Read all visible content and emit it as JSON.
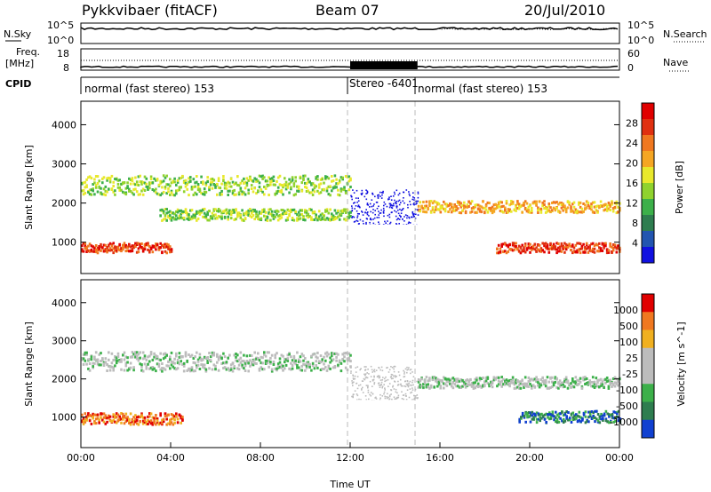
{
  "header": {
    "title": "Pykkvibaer (fitACF)",
    "beam": "Beam 07",
    "date": "20/Jul/2010"
  },
  "side_labels": {
    "nsky": "N.Sky",
    "nsearch": "N.Search",
    "freq_line1": "Freq.",
    "freq_line2": "[MHz]",
    "nave": "Nave",
    "cpid": "CPID"
  },
  "noise_panel": {
    "left_ticks": [
      "10^5",
      "10^0"
    ],
    "right_ticks": [
      "10^5",
      "10^0"
    ]
  },
  "freq_panel": {
    "left_ticks": [
      "18",
      "8"
    ],
    "right_ticks": [
      "60",
      "0"
    ]
  },
  "cpid_panel": {
    "segments": [
      {
        "label": "normal (fast stereo) 153",
        "start_hour": 0,
        "end_hour": 12
      },
      {
        "label": "Stereo -6401",
        "start_hour": 12,
        "end_hour": 15
      },
      {
        "label": "normal (fast stereo) 153",
        "start_hour": 15,
        "end_hour": 24
      }
    ]
  },
  "chart_data": [
    {
      "type": "heatmap",
      "name": "power-panel",
      "ylabel": "Slant Range [km]",
      "xlim": [
        0,
        24
      ],
      "ylim": [
        200,
        4600
      ],
      "yticks": [
        "1000",
        "2000",
        "3000",
        "4000"
      ],
      "colorbar": {
        "label": "Power [dB]",
        "ticks": [
          "28",
          "24",
          "20",
          "16",
          "12",
          "8",
          "4"
        ],
        "colors": [
          "#1010e0",
          "#2255b0",
          "#2e7d4f",
          "#3cb04a",
          "#8fd22e",
          "#e8e82c",
          "#f5a623",
          "#f07820",
          "#e03010",
          "#e00000"
        ]
      },
      "data_gap": {
        "start_hour": 12,
        "end_hour": 15,
        "blank_below_km": 1450
      },
      "bands": [
        {
          "start_hour": 0,
          "end_hour": 12,
          "center_km": 2450,
          "width_km": 500,
          "level": 4
        },
        {
          "start_hour": 3.5,
          "end_hour": 12,
          "center_km": 1700,
          "width_km": 300,
          "level": 4
        },
        {
          "start_hour": 0,
          "end_hour": 4,
          "center_km": 850,
          "width_km": 250,
          "level": 8
        },
        {
          "start_hour": 15,
          "end_hour": 24,
          "center_km": 1900,
          "width_km": 300,
          "level": 6
        },
        {
          "start_hour": 18.5,
          "end_hour": 24,
          "center_km": 850,
          "width_km": 250,
          "level": 8
        }
      ]
    },
    {
      "type": "heatmap",
      "name": "velocity-panel",
      "ylabel": "Slant Range [km]",
      "xlabel": "Time UT",
      "xlim": [
        0,
        24
      ],
      "ylim": [
        200,
        4600
      ],
      "yticks": [
        "1000",
        "2000",
        "3000",
        "4000"
      ],
      "xticks": [
        "00:00",
        "04:00",
        "08:00",
        "12:00",
        "16:00",
        "20:00",
        "00:00"
      ],
      "colorbar": {
        "label": "Velocity [m s^-1]",
        "ticks": [
          "1000",
          "500",
          "100",
          "25",
          "-25",
          "-100",
          "-500",
          "-1000"
        ],
        "colors": [
          "#1040d0",
          "#2e7d4f",
          "#3cb04a",
          "#bcbcbc",
          "#bcbcbc",
          "#f0b020",
          "#f07820",
          "#e00000"
        ]
      },
      "data_gap": {
        "start_hour": 12,
        "end_hour": 15,
        "blank_below_km": 1450
      },
      "bands": [
        {
          "start_hour": 0,
          "end_hour": 12,
          "center_km": 2450,
          "width_km": 500,
          "level": 3
        },
        {
          "start_hour": 0,
          "end_hour": 4.5,
          "center_km": 950,
          "width_km": 300,
          "level": 6
        },
        {
          "start_hour": 15,
          "end_hour": 24,
          "center_km": 1900,
          "width_km": 300,
          "level": 3
        },
        {
          "start_hour": 19.5,
          "end_hour": 24,
          "center_km": 1000,
          "width_km": 300,
          "level": 1
        }
      ]
    }
  ]
}
